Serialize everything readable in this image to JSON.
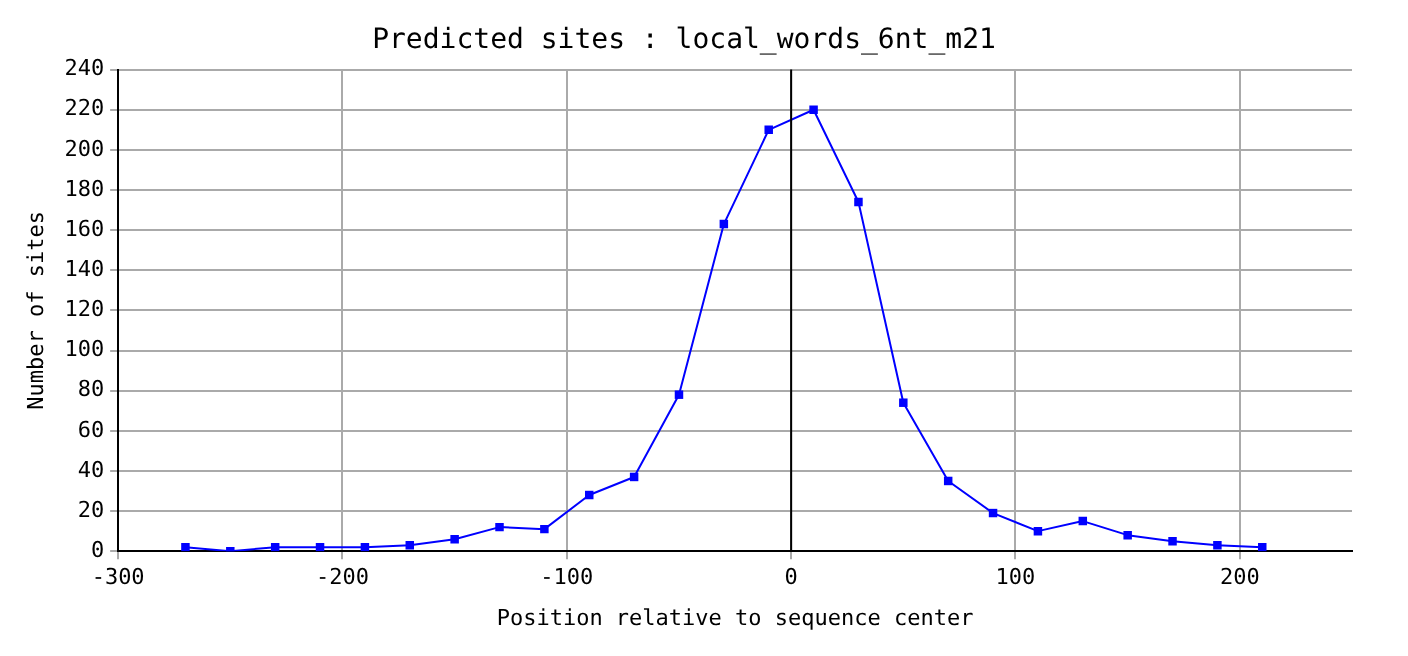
{
  "chart_data": {
    "type": "line",
    "title": "Predicted sites : local_words_6nt_m21",
    "xlabel": "Position relative to sequence center",
    "ylabel": "Number of sites",
    "x": [
      -270,
      -250,
      -230,
      -210,
      -190,
      -170,
      -150,
      -130,
      -110,
      -90,
      -70,
      -50,
      -30,
      -10,
      10,
      30,
      50,
      70,
      90,
      110,
      130,
      150,
      170,
      190,
      210
    ],
    "series": [
      {
        "color": "#0000ff",
        "values": [
          2,
          0,
          2,
          2,
          2,
          3,
          6,
          12,
          11,
          28,
          37,
          78,
          163,
          210,
          220,
          174,
          74,
          35,
          19,
          10,
          15,
          8,
          5,
          3,
          2
        ]
      }
    ],
    "xlim": [
      -300,
      250
    ],
    "xticks": [
      -300,
      -200,
      -100,
      0,
      100,
      200
    ],
    "ylim": [
      0,
      240
    ],
    "yticks": [
      0,
      20,
      40,
      60,
      80,
      100,
      120,
      140,
      160,
      180,
      200,
      220,
      240
    ],
    "ref_lines": [
      {
        "axis": "x",
        "value": 0,
        "color": "#000000"
      }
    ],
    "grid": true,
    "legend": false,
    "marker": "square",
    "line_style": "solid"
  }
}
